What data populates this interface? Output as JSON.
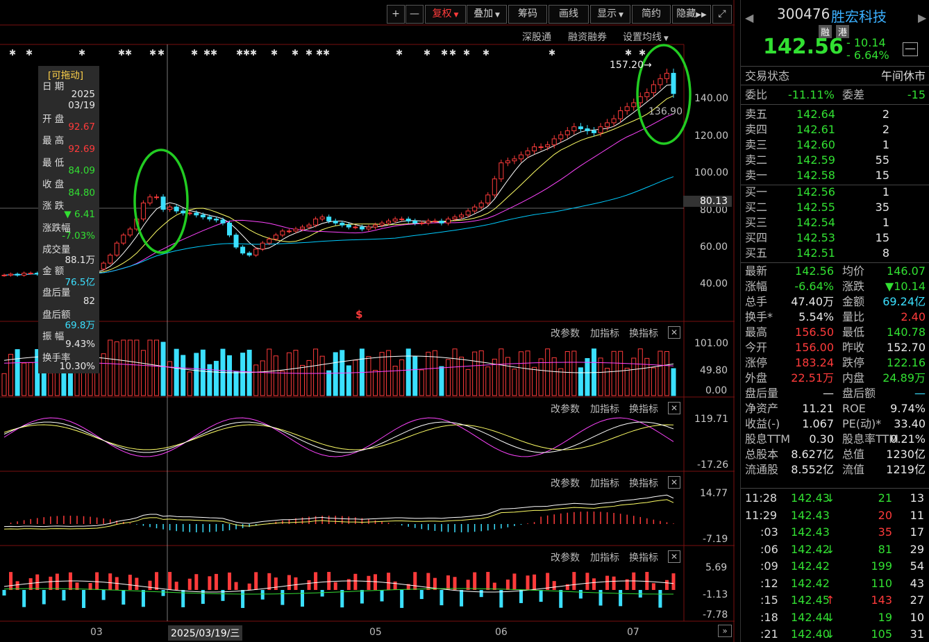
{
  "toolbar": {
    "plus": "+",
    "minus": "—",
    "fuquan": "复权",
    "diejia": "叠加",
    "chouma": "筹码",
    "huaxian": "画线",
    "xianshi": "显示",
    "jianjia": "简约",
    "yincang": "隐藏",
    "expand_icon": "expand-icon"
  },
  "subbar": {
    "shengutong": "深股通",
    "rongzi": "融资融券",
    "junxian": "设置均线"
  },
  "info_box": {
    "title": "[可拖动]",
    "date_label": "日 期",
    "date_year": "2025",
    "date_md": "03/19",
    "open_label": "开 盘",
    "open": "92.67",
    "high_label": "最 高",
    "high": "92.69",
    "low_label": "最 低",
    "low": "84.09",
    "close_label": "收 盘",
    "close": "84.80",
    "change_label": "涨 跌",
    "change": "▼ 6.41",
    "pct_label": "涨跌幅",
    "pct": "-7.03%",
    "vol_label": "成交量",
    "vol": "88.1万",
    "amt_label": "金 额",
    "amt": "76.5亿",
    "ah_vol_label": "盘后量",
    "ah_vol": "82",
    "ah_amt_label": "盘后额",
    "ah_amt": "69.8万",
    "amp_label": "振 幅",
    "amp": "9.43%",
    "turn_label": "换手率",
    "turn": "10.30%"
  },
  "main_chart": {
    "yticks": [
      "140.00",
      "120.00",
      "100.00",
      "80.00",
      "60.00",
      "40.00"
    ],
    "crosshair_price": "80.13",
    "peak_label": "157.20",
    "ma_label": "136.90",
    "peak_arrow": "→",
    "dollar": "$",
    "gaps_label": "136.90"
  },
  "volume_chart": {
    "yticks": [
      "101.00",
      "49.80",
      "0.00"
    ]
  },
  "ind_buttons": {
    "gcs": "改参数",
    "jzb": "加指标",
    "hzb": "换指标",
    "close": "✕"
  },
  "kdj_chart": {
    "yticks": [
      "119.71",
      "-17.26"
    ]
  },
  "macd_chart": {
    "yticks": [
      "14.77",
      "-7.19"
    ]
  },
  "flow_chart": {
    "yticks": [
      "5.69",
      "-1.13",
      "-7.78"
    ]
  },
  "xaxis": {
    "labels": [
      "03",
      "05",
      "06",
      "07"
    ],
    "cursor_date": "2025/03/19/三"
  },
  "stock": {
    "code": "300476",
    "name": "胜宏科技",
    "tag1": "融",
    "tag2": "港",
    "price": "142.56",
    "chg": "- 10.14",
    "pct": "- 6.64%",
    "state_label": "交易状态",
    "state": "午间休市",
    "weibi_label": "委比",
    "weibi": "-11.11%",
    "weicha_label": "委差",
    "weicha": "-15"
  },
  "asks": [
    {
      "l": "卖五",
      "p": "142.64",
      "v": "2"
    },
    {
      "l": "卖四",
      "p": "142.61",
      "v": "2"
    },
    {
      "l": "卖三",
      "p": "142.60",
      "v": "1"
    },
    {
      "l": "卖二",
      "p": "142.59",
      "v": "55"
    },
    {
      "l": "卖一",
      "p": "142.58",
      "v": "15"
    }
  ],
  "bids": [
    {
      "l": "买一",
      "p": "142.56",
      "v": "1"
    },
    {
      "l": "买二",
      "p": "142.55",
      "v": "35"
    },
    {
      "l": "买三",
      "p": "142.54",
      "v": "1"
    },
    {
      "l": "买四",
      "p": "142.53",
      "v": "15"
    },
    {
      "l": "买五",
      "p": "142.51",
      "v": "8"
    }
  ],
  "stats": [
    {
      "l1": "最新",
      "v1": "142.56",
      "c1": "grn",
      "l2": "均价",
      "v2": "146.07",
      "c2": "grn"
    },
    {
      "l1": "涨幅",
      "v1": "-6.64%",
      "c1": "grn",
      "l2": "涨跌",
      "v2": "▼10.14",
      "c2": "grn"
    },
    {
      "l1": "总手",
      "v1": "47.40万",
      "c1": "wht",
      "l2": "金额",
      "v2": "69.24亿",
      "c2": "cyan"
    },
    {
      "l1": "换手*",
      "v1": "5.54%",
      "c1": "wht",
      "l2": "量比",
      "v2": "2.40",
      "c2": "red"
    },
    {
      "l1": "最高",
      "v1": "156.50",
      "c1": "red",
      "l2": "最低",
      "v2": "140.78",
      "c2": "grn"
    },
    {
      "l1": "今开",
      "v1": "156.00",
      "c1": "red",
      "l2": "昨收",
      "v2": "152.70",
      "c2": "wht"
    },
    {
      "l1": "涨停",
      "v1": "183.24",
      "c1": "red",
      "l2": "跌停",
      "v2": "122.16",
      "c2": "grn"
    },
    {
      "l1": "外盘",
      "v1": "22.51万",
      "c1": "red",
      "l2": "内盘",
      "v2": "24.89万",
      "c2": "grn"
    },
    {
      "l1": "盘后量",
      "v1": "—",
      "c1": "wht",
      "l2": "盘后额",
      "v2": "—",
      "c2": "cyan"
    },
    {
      "l1": "净资产",
      "v1": "11.21",
      "c1": "wht",
      "l2": "ROE",
      "v2": "9.74%",
      "c2": "wht"
    },
    {
      "l1": "收益(-)",
      "v1": "1.067",
      "c1": "wht",
      "l2": "PE(动)*",
      "v2": "33.40",
      "c2": "wht"
    },
    {
      "l1": "股息TTM",
      "v1": "0.30",
      "c1": "wht",
      "l2": "股息率TTM",
      "v2": "0.21%",
      "c2": "wht"
    },
    {
      "l1": "总股本",
      "v1": "8.627亿",
      "c1": "wht",
      "l2": "总值",
      "v2": "1230亿",
      "c2": "wht"
    },
    {
      "l1": "流通股",
      "v1": "8.552亿",
      "c1": "wht",
      "l2": "流值",
      "v2": "1219亿",
      "c2": "wht"
    }
  ],
  "ticks": [
    {
      "t": "11:28",
      "p": "142.43",
      "a": "↓",
      "v": "21",
      "n": "13",
      "vc": "grn"
    },
    {
      "t": "11:29",
      "p": "142.43",
      "a": "",
      "v": "20",
      "n": "11",
      "vc": "red"
    },
    {
      "t": ":03",
      "p": "142.43",
      "a": "",
      "v": "35",
      "n": "17",
      "vc": "red"
    },
    {
      "t": ":06",
      "p": "142.42",
      "a": "↓",
      "v": "81",
      "n": "29",
      "vc": "grn"
    },
    {
      "t": ":09",
      "p": "142.42",
      "a": "",
      "v": "199",
      "n": "54",
      "vc": "grn"
    },
    {
      "t": ":12",
      "p": "142.42",
      "a": "",
      "v": "110",
      "n": "43",
      "vc": "grn"
    },
    {
      "t": ":15",
      "p": "142.45",
      "a": "↑",
      "v": "143",
      "n": "27",
      "vc": "red"
    },
    {
      "t": ":18",
      "p": "142.44",
      "a": "↓",
      "v": "19",
      "n": "10",
      "vc": "grn"
    },
    {
      "t": ":21",
      "p": "142.40",
      "a": "↓",
      "v": "105",
      "n": "31",
      "vc": "grn"
    }
  ],
  "colors": {
    "up": "#ff3b3b",
    "down": "#3be0ff",
    "ma5": "#ffffff",
    "ma10": "#ffff66",
    "ma20": "#ff44ff",
    "ma60": "#00ccff",
    "highlight": "#22cc22"
  },
  "chart_data": {
    "type": "candlestick",
    "ylim": [
      30,
      165
    ],
    "closes": [
      52,
      52.5,
      52,
      53,
      53,
      52.5,
      52,
      53,
      53.5,
      53,
      52.5,
      53,
      53,
      54,
      55,
      58,
      62,
      68,
      72,
      75,
      80,
      88,
      91,
      91,
      84.8,
      86,
      84,
      83,
      83,
      82,
      81,
      80,
      79.5,
      78,
      72,
      66,
      63,
      62,
      65,
      68,
      70,
      72,
      74,
      74,
      75,
      76,
      77,
      80,
      81,
      79,
      78,
      77,
      76,
      76,
      75,
      76,
      77,
      78,
      79,
      80,
      80,
      79,
      78,
      78,
      79,
      79,
      78,
      80,
      81,
      82,
      84,
      86,
      88,
      92,
      100,
      108,
      109,
      110,
      112,
      114,
      116,
      116,
      117,
      120,
      122,
      124,
      126,
      125,
      124,
      123,
      126,
      128,
      130,
      134,
      136,
      138,
      141,
      143,
      147,
      150,
      152.7,
      142.56
    ],
    "vol_tick_max": 101
  }
}
